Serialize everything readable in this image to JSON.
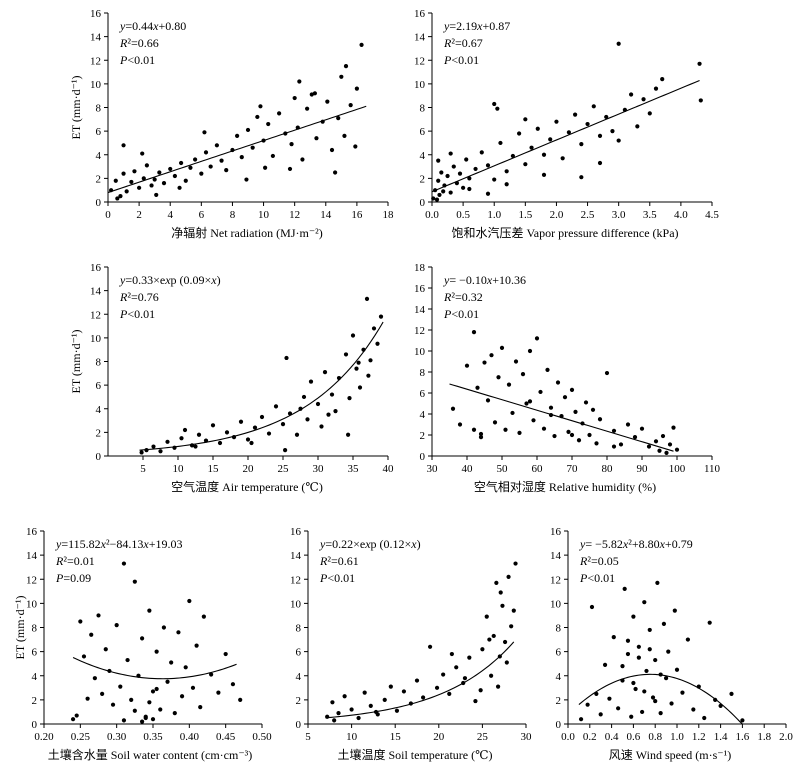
{
  "chart_data": [
    {
      "type": "scatter",
      "xlabel": "净辐射 Net radiation (MJ·m⁻²)",
      "ylabel": "ET (mm·d⁻¹)",
      "xlim": [
        0,
        18
      ],
      "ylim": [
        0,
        16
      ],
      "xticks": [
        0,
        2,
        4,
        6,
        8,
        10,
        12,
        14,
        16,
        18
      ],
      "yticks": [
        0,
        2,
        4,
        6,
        8,
        10,
        12,
        14,
        16
      ],
      "annotation": [
        "y=0.44x+0.80",
        "R²=0.66",
        "P<0.01"
      ],
      "fit": {
        "kind": "linear",
        "coef": [
          0.44,
          0.8
        ],
        "xrange": [
          0,
          16.6
        ]
      },
      "points": {
        "x": [
          0.2,
          0.5,
          0.8,
          1.0,
          1.2,
          1.5,
          1.7,
          2.0,
          2.3,
          2.5,
          2.8,
          3.0,
          3.3,
          3.6,
          4.0,
          4.3,
          4.7,
          5.0,
          5.3,
          5.6,
          6.0,
          6.3,
          6.6,
          7.0,
          7.3,
          7.6,
          8.0,
          8.3,
          8.6,
          9.0,
          9.3,
          9.6,
          10.0,
          10.3,
          10.6,
          11.0,
          11.4,
          11.8,
          12.0,
          12.2,
          12.5,
          12.8,
          13.1,
          13.4,
          13.8,
          14.1,
          14.4,
          14.8,
          15.0,
          15.3,
          15.6,
          16.0,
          16.3,
          1.0,
          2.2,
          3.1,
          6.2,
          9.8,
          10.1,
          12.3,
          15.2,
          15.9,
          0.6,
          4.6,
          8.9,
          11.7,
          13.3,
          14.6
        ],
        "y": [
          1.0,
          1.8,
          0.5,
          2.4,
          0.9,
          1.7,
          2.6,
          1.2,
          2.0,
          3.1,
          1.4,
          1.9,
          2.5,
          1.6,
          2.8,
          2.2,
          3.3,
          1.8,
          2.9,
          3.6,
          2.4,
          4.2,
          3.0,
          4.8,
          3.5,
          2.7,
          4.4,
          5.6,
          3.8,
          6.1,
          4.6,
          7.2,
          5.2,
          6.6,
          3.9,
          7.5,
          5.8,
          4.9,
          8.8,
          6.3,
          3.6,
          7.9,
          9.1,
          5.4,
          6.8,
          8.5,
          4.4,
          7.1,
          10.6,
          11.5,
          8.2,
          9.6,
          13.3,
          4.8,
          4.1,
          0.6,
          5.9,
          8.1,
          2.9,
          10.2,
          5.6,
          4.7,
          0.3,
          1.2,
          1.9,
          2.8,
          9.2,
          2.5
        ]
      }
    },
    {
      "type": "scatter",
      "xlabel": "饱和水汽压差 Vapor pressure difference (kPa)",
      "ylabel": "",
      "xlim": [
        0,
        4.5
      ],
      "ylim": [
        0,
        16
      ],
      "xticks": [
        0,
        0.5,
        1.0,
        1.5,
        2.0,
        2.5,
        3.0,
        3.5,
        4.0,
        4.5
      ],
      "yticks": [
        0,
        2,
        4,
        6,
        8,
        10,
        12,
        14,
        16
      ],
      "annotation": [
        "y=2.19x+0.87",
        "R²=0.67",
        "P<0.01"
      ],
      "fit": {
        "kind": "linear",
        "coef": [
          2.19,
          0.87
        ],
        "xrange": [
          0,
          4.3
        ]
      },
      "points": {
        "x": [
          0.02,
          0.05,
          0.08,
          0.1,
          0.12,
          0.15,
          0.18,
          0.2,
          0.25,
          0.3,
          0.35,
          0.4,
          0.45,
          0.5,
          0.55,
          0.6,
          0.7,
          0.8,
          0.9,
          1.0,
          1.1,
          1.2,
          1.3,
          1.4,
          1.5,
          1.6,
          1.7,
          1.8,
          1.9,
          2.0,
          2.1,
          2.2,
          2.3,
          2.4,
          2.5,
          2.6,
          2.7,
          2.8,
          2.9,
          3.0,
          3.1,
          3.2,
          3.3,
          3.4,
          3.5,
          3.6,
          3.7,
          4.3,
          4.32,
          1.0,
          1.05,
          1.5,
          2.4,
          3.0,
          0.1,
          0.3,
          0.6,
          0.9,
          1.2,
          1.8,
          2.7
        ],
        "y": [
          0.3,
          1.0,
          0.2,
          1.8,
          0.6,
          2.5,
          0.9,
          1.4,
          2.2,
          0.8,
          3.0,
          1.6,
          2.4,
          1.2,
          3.6,
          2.0,
          2.8,
          4.2,
          3.1,
          1.9,
          5.0,
          2.6,
          3.9,
          5.8,
          3.2,
          4.6,
          6.2,
          4.0,
          5.3,
          6.8,
          3.7,
          5.9,
          7.4,
          4.9,
          6.6,
          8.1,
          5.6,
          7.2,
          6.0,
          13.4,
          7.8,
          9.1,
          6.4,
          8.7,
          7.5,
          9.6,
          10.4,
          11.7,
          8.6,
          8.3,
          7.9,
          7.0,
          2.1,
          5.2,
          3.5,
          4.1,
          1.1,
          0.7,
          1.5,
          2.3,
          3.3
        ]
      }
    },
    {
      "type": "scatter",
      "xlabel": "空气温度 Air temperature (℃)",
      "ylabel": "ET (mm·d⁻¹)",
      "xlim": [
        0,
        40
      ],
      "ylim": [
        0,
        16
      ],
      "xticks": [
        5,
        10,
        15,
        20,
        25,
        30,
        35,
        40
      ],
      "yticks": [
        0,
        2,
        4,
        6,
        8,
        10,
        12,
        14,
        16
      ],
      "annotation": [
        "y=0.33×exp (0.09×x)",
        "R²=0.76",
        "P<0.01"
      ],
      "fit": {
        "kind": "exp",
        "coef": [
          0.33,
          0.09
        ],
        "xrange": [
          4.5,
          39.3
        ]
      },
      "points": {
        "x": [
          4.8,
          5.5,
          6.5,
          7.5,
          8.5,
          9.5,
          10.5,
          11.0,
          12.0,
          13.0,
          14.0,
          15.0,
          16.0,
          17.0,
          18.0,
          19.0,
          20.0,
          21.0,
          22.0,
          23.0,
          24.0,
          25.0,
          25.5,
          26.0,
          27.0,
          28.0,
          28.5,
          29.0,
          30.0,
          30.5,
          31.0,
          32.0,
          32.5,
          33.0,
          34.0,
          34.5,
          35.0,
          35.5,
          36.0,
          36.5,
          37.0,
          37.5,
          38.0,
          38.5,
          39.0,
          25.3,
          34.3,
          37.2,
          12.5,
          20.5,
          27.5,
          31.5,
          35.8
        ],
        "y": [
          0.3,
          0.5,
          0.8,
          0.4,
          1.2,
          0.7,
          1.5,
          2.2,
          0.9,
          1.8,
          1.3,
          2.6,
          1.1,
          2.0,
          1.6,
          2.9,
          1.4,
          2.4,
          3.3,
          1.9,
          4.2,
          2.7,
          8.3,
          3.6,
          1.8,
          5.0,
          3.1,
          6.3,
          4.4,
          2.5,
          7.1,
          5.2,
          3.8,
          6.6,
          8.6,
          4.9,
          10.2,
          7.4,
          5.8,
          9.0,
          13.3,
          8.1,
          10.8,
          9.5,
          11.8,
          0.5,
          1.8,
          6.8,
          0.8,
          1.1,
          4.0,
          3.5,
          7.9
        ]
      }
    },
    {
      "type": "scatter",
      "xlabel": "空气相对湿度 Relative humidity (%)",
      "ylabel": "",
      "xlim": [
        30,
        110
      ],
      "ylim": [
        0,
        18
      ],
      "xticks": [
        30,
        40,
        50,
        60,
        70,
        80,
        90,
        100,
        110
      ],
      "yticks": [
        0,
        2,
        4,
        6,
        8,
        10,
        12,
        14,
        16,
        18
      ],
      "annotation": [
        "y= −0.10x+10.36",
        "R²=0.32",
        "P<0.01"
      ],
      "fit": {
        "kind": "linear",
        "coef": [
          -0.1,
          10.36
        ],
        "xrange": [
          35,
          99
        ]
      },
      "points": {
        "x": [
          36,
          38,
          40,
          42,
          43,
          44,
          45,
          46,
          47,
          48,
          49,
          50,
          51,
          52,
          53,
          54,
          55,
          56,
          57,
          58,
          59,
          60,
          61,
          62,
          63,
          64,
          65,
          66,
          67,
          68,
          69,
          70,
          71,
          72,
          73,
          74,
          75,
          76,
          77,
          78,
          80,
          82,
          84,
          86,
          88,
          90,
          92,
          94,
          95,
          96,
          97,
          98,
          99,
          100,
          42,
          44,
          58,
          64,
          70,
          82
        ],
        "y": [
          4.5,
          3.0,
          8.6,
          11.8,
          6.5,
          2.1,
          8.9,
          5.3,
          9.6,
          3.2,
          7.5,
          10.3,
          2.5,
          6.8,
          4.1,
          9.0,
          2.2,
          7.8,
          5.0,
          10.0,
          3.4,
          11.2,
          6.1,
          2.6,
          8.2,
          4.6,
          1.9,
          7.0,
          3.8,
          5.6,
          2.3,
          6.3,
          4.2,
          1.5,
          3.1,
          5.1,
          2.0,
          4.4,
          1.2,
          3.5,
          7.9,
          2.4,
          1.1,
          3.0,
          1.8,
          2.6,
          0.9,
          1.4,
          0.5,
          1.9,
          0.3,
          1.1,
          2.7,
          0.6,
          2.5,
          1.8,
          5.2,
          3.9,
          2.0,
          0.9
        ]
      }
    },
    {
      "type": "scatter",
      "xlabel": "土壤含水量 Soil water content (cm·cm⁻³)",
      "ylabel": "ET (mm·d⁻¹)",
      "xlim": [
        0.2,
        0.5
      ],
      "ylim": [
        0,
        16
      ],
      "xticks": [
        0.2,
        0.25,
        0.3,
        0.35,
        0.4,
        0.45,
        0.5
      ],
      "yticks": [
        0,
        2,
        4,
        6,
        8,
        10,
        12,
        14,
        16
      ],
      "annotation": [
        "y=115.82x²−84.13x+19.03",
        "R²=0.01",
        "P=0.09"
      ],
      "fit": {
        "kind": "quad",
        "coef": [
          115.82,
          -84.13,
          19.03
        ],
        "xrange": [
          0.24,
          0.465
        ]
      },
      "points": {
        "x": [
          0.245,
          0.25,
          0.255,
          0.26,
          0.265,
          0.27,
          0.275,
          0.28,
          0.285,
          0.29,
          0.295,
          0.3,
          0.305,
          0.31,
          0.315,
          0.32,
          0.325,
          0.33,
          0.335,
          0.34,
          0.345,
          0.35,
          0.355,
          0.36,
          0.365,
          0.37,
          0.375,
          0.38,
          0.385,
          0.39,
          0.395,
          0.4,
          0.405,
          0.41,
          0.415,
          0.42,
          0.43,
          0.44,
          0.45,
          0.46,
          0.47,
          0.31,
          0.325,
          0.335,
          0.34,
          0.345,
          0.35,
          0.355,
          0.24
        ],
        "y": [
          0.7,
          8.5,
          5.6,
          2.1,
          7.4,
          3.8,
          9.0,
          2.5,
          6.2,
          4.4,
          1.6,
          8.2,
          3.1,
          13.3,
          5.3,
          2.0,
          11.8,
          4.0,
          7.1,
          0.5,
          9.4,
          2.7,
          6.0,
          1.2,
          8.0,
          3.5,
          5.1,
          0.9,
          7.6,
          2.3,
          4.7,
          10.2,
          3.0,
          6.5,
          1.4,
          8.9,
          4.1,
          2.6,
          5.8,
          3.3,
          2.0,
          0.3,
          1.1,
          0.2,
          0.6,
          1.8,
          0.4,
          2.9,
          0.4
        ]
      }
    },
    {
      "type": "scatter",
      "xlabel": "土壤温度 Soil temperature (℃)",
      "ylabel": "",
      "xlim": [
        5,
        30
      ],
      "ylim": [
        0,
        16
      ],
      "xticks": [
        5,
        10,
        15,
        20,
        25,
        30
      ],
      "yticks": [
        0,
        2,
        4,
        6,
        8,
        10,
        12,
        14,
        16
      ],
      "annotation": [
        "y=0.22×exp (0.12×x)",
        "R²=0.61",
        "P<0.01"
      ],
      "fit": {
        "kind": "exp",
        "coef": [
          0.22,
          0.12
        ],
        "xrange": [
          7,
          28.6
        ]
      },
      "points": {
        "x": [
          7.2,
          7.8,
          8.5,
          9.2,
          10.0,
          10.8,
          11.5,
          12.2,
          13.0,
          13.8,
          14.5,
          15.2,
          16.0,
          16.8,
          17.5,
          18.2,
          19.0,
          19.8,
          20.5,
          21.2,
          22.0,
          22.8,
          23.5,
          24.2,
          25.0,
          25.5,
          26.0,
          26.3,
          26.6,
          27.0,
          27.3,
          27.6,
          28.0,
          28.3,
          28.6,
          26.8,
          27.8,
          24.8,
          25.8,
          21.5,
          23.0,
          8.0,
          12.8,
          27.1,
          28.8
        ],
        "y": [
          0.6,
          1.8,
          0.9,
          2.3,
          1.2,
          0.5,
          2.6,
          1.5,
          0.8,
          2.0,
          3.1,
          1.1,
          2.7,
          1.7,
          3.6,
          2.2,
          6.4,
          3.0,
          4.1,
          2.5,
          4.7,
          3.4,
          5.5,
          1.9,
          6.2,
          8.9,
          4.0,
          7.3,
          11.7,
          5.6,
          9.8,
          6.8,
          12.2,
          8.1,
          9.4,
          3.1,
          5.1,
          2.8,
          7.0,
          5.8,
          3.8,
          0.3,
          1.0,
          10.9,
          13.3
        ]
      }
    },
    {
      "type": "scatter",
      "xlabel": "风速 Wind speed (m·s⁻¹)",
      "ylabel": "",
      "xlim": [
        0,
        2.0
      ],
      "ylim": [
        0,
        16
      ],
      "xticks": [
        0,
        0.2,
        0.4,
        0.6,
        0.8,
        1.0,
        1.2,
        1.4,
        1.6,
        1.8,
        2.0
      ],
      "yticks": [
        0,
        2,
        4,
        6,
        8,
        10,
        12,
        14,
        16
      ],
      "annotation": [
        "y= −5.82x²+8.80x+0.79",
        "R²=0.05",
        "P<0.01"
      ],
      "fit": {
        "kind": "quad",
        "coef": [
          -5.82,
          8.8,
          0.79
        ],
        "xrange": [
          0.1,
          1.6
        ]
      },
      "points": {
        "x": [
          0.12,
          0.18,
          0.22,
          0.26,
          0.3,
          0.34,
          0.38,
          0.42,
          0.46,
          0.5,
          0.52,
          0.55,
          0.58,
          0.6,
          0.62,
          0.65,
          0.68,
          0.7,
          0.72,
          0.75,
          0.78,
          0.8,
          0.82,
          0.85,
          0.88,
          0.9,
          0.92,
          0.95,
          0.98,
          1.0,
          1.05,
          1.1,
          1.15,
          1.2,
          1.25,
          1.3,
          1.35,
          1.4,
          1.5,
          1.6,
          0.55,
          0.65,
          0.75,
          0.85,
          0.6,
          0.7,
          0.8,
          0.5
        ],
        "y": [
          0.4,
          1.6,
          9.7,
          2.5,
          0.8,
          4.9,
          2.1,
          7.2,
          1.3,
          3.6,
          11.2,
          5.8,
          0.6,
          8.9,
          2.9,
          6.4,
          1.0,
          10.1,
          4.4,
          7.8,
          2.2,
          5.3,
          11.7,
          0.9,
          8.3,
          3.8,
          6.0,
          1.7,
          9.4,
          4.5,
          2.6,
          7.0,
          1.2,
          3.1,
          0.5,
          8.4,
          2.0,
          1.5,
          2.5,
          0.3,
          6.9,
          5.5,
          6.2,
          4.1,
          3.4,
          2.7,
          1.9,
          4.8
        ]
      }
    }
  ]
}
